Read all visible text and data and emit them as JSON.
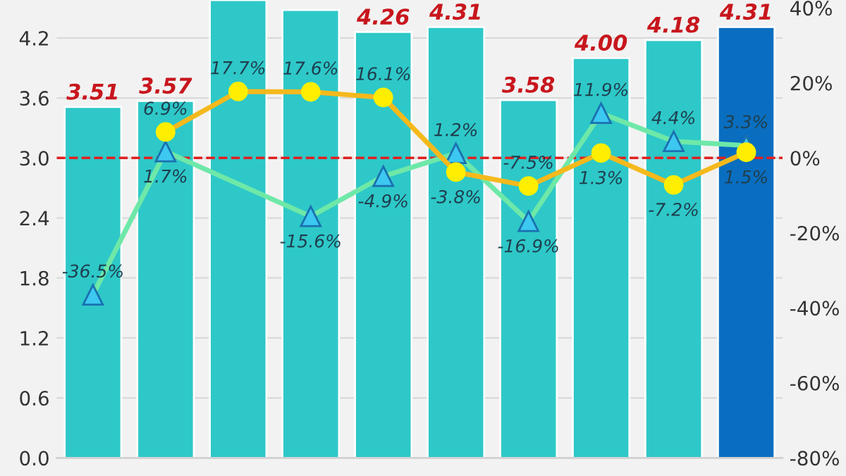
{
  "chart_data": {
    "type": "bar",
    "categories": [
      null,
      null,
      null,
      null,
      null,
      null,
      null,
      null,
      null,
      null
    ],
    "values": [
      3.51,
      3.57,
      4.58,
      4.48,
      4.26,
      4.31,
      3.58,
      4.0,
      4.18,
      4.31
    ],
    "colors": [
      "#2ec8c8",
      "#2ec8c8",
      "#2ec8c8",
      "#2ec8c8",
      "#2ec8c8",
      "#2ec8c8",
      "#2ec8c8",
      "#2ec8c8",
      "#2ec8c8",
      "#0a6ec0"
    ],
    "value_labels": [
      "3.51",
      "3.57",
      null,
      null,
      "4.26",
      "4.31",
      "3.58",
      "4.00",
      "4.18",
      "4.31"
    ],
    "series": [
      {
        "type": "line",
        "axis": "y2",
        "color": "#f5b91c",
        "marker": "circle",
        "values": [
          null,
          6.9,
          17.7,
          17.6,
          16.1,
          -3.8,
          -7.5,
          1.3,
          -7.2,
          1.5
        ],
        "value_labels": [
          null,
          "6.9%",
          "17.7%",
          "17.6%",
          "16.1%",
          "-3.8%",
          "-7.5%",
          "1.3%",
          "-7.2%",
          "1.5%"
        ]
      },
      {
        "type": "line",
        "axis": "y2",
        "color": "#6ee8a8",
        "marker": "triangle",
        "values": [
          -36.5,
          1.7,
          null,
          -15.6,
          -4.9,
          1.2,
          -16.9,
          11.9,
          4.4,
          3.3
        ],
        "value_labels": [
          "-36.5%",
          "1.7%",
          null,
          "-15.6%",
          "-4.9%",
          "1.2%",
          "-16.9%",
          "11.9%",
          "4.4%",
          "3.3%"
        ]
      }
    ],
    "ylim": [
      0,
      4.58
    ],
    "yticks": [
      {
        "value": 0,
        "label": "0.0"
      },
      0.6,
      1.2,
      1.8,
      2.4,
      {
        "value": 3.0,
        "label": "3.0"
      },
      3.6,
      4.2
    ],
    "y2lim": [
      -80,
      42.1
    ],
    "y2ticks": [
      {
        "value": -80,
        "label": "-80%"
      },
      {
        "value": -60,
        "label": "-60%"
      },
      {
        "value": -40,
        "label": "-40%"
      },
      {
        "value": -20,
        "label": "-20%"
      },
      {
        "value": 0,
        "label": "0%"
      },
      {
        "value": 20,
        "label": "20%"
      },
      {
        "value": 40,
        "label": "40%"
      }
    ],
    "ref_lines": [
      {
        "axis": "y2",
        "value": 0,
        "color": "#e02020",
        "line_style": "dashed"
      }
    ],
    "grid": "y"
  }
}
